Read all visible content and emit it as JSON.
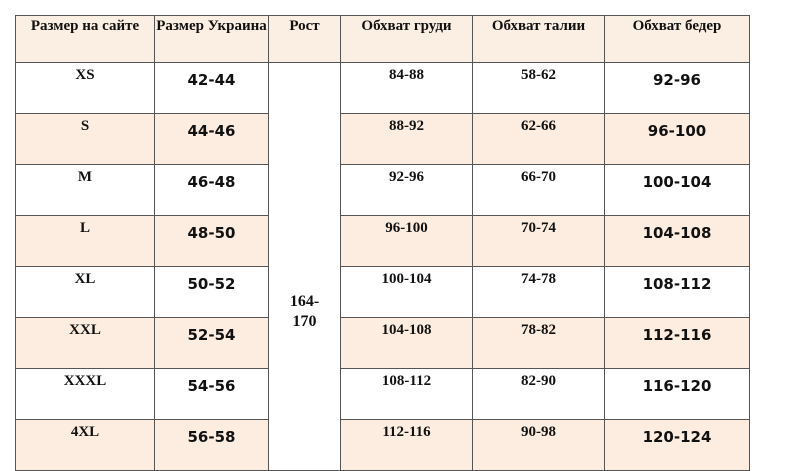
{
  "table": {
    "headers": [
      "Размер на сайте",
      "Размер Украина",
      "Рост",
      "Обхват груди",
      "Обхват талии",
      "Обхват бедер"
    ],
    "height_range": "164-\n170",
    "rows": [
      {
        "site": "XS",
        "ua": "42-44",
        "chest": "84-88",
        "waist": "58-62",
        "hips": "92-96"
      },
      {
        "site": "S",
        "ua": "44-46",
        "chest": "88-92",
        "waist": "62-66",
        "hips": "96-100"
      },
      {
        "site": "M",
        "ua": "46-48",
        "chest": "92-96",
        "waist": "66-70",
        "hips": "100-104"
      },
      {
        "site": "L",
        "ua": "48-50",
        "chest": "96-100",
        "waist": "70-74",
        "hips": "104-108"
      },
      {
        "site": "XL",
        "ua": "50-52",
        "chest": "100-104",
        "waist": "74-78",
        "hips": "108-112"
      },
      {
        "site": "XXL",
        "ua": "52-54",
        "chest": "104-108",
        "waist": "78-82",
        "hips": "112-116"
      },
      {
        "site": "XXXL",
        "ua": "54-56",
        "chest": "108-112",
        "waist": "82-90",
        "hips": "116-120"
      },
      {
        "site": "4XL",
        "ua": "56-58",
        "chest": "112-116",
        "waist": "90-98",
        "hips": "120-124"
      }
    ]
  },
  "colors": {
    "row_alt": "#fcede0",
    "border": "#555555"
  }
}
